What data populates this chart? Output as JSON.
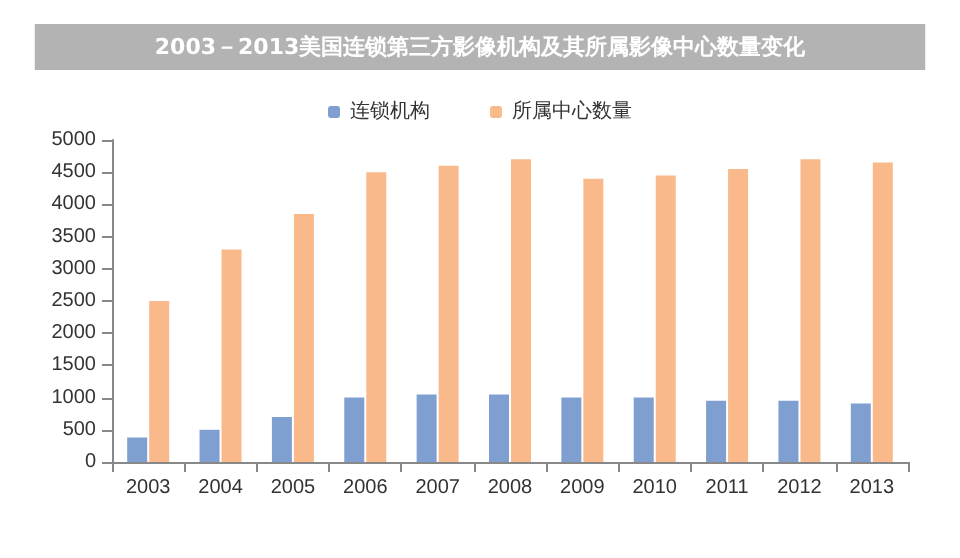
{
  "chart_data": {
    "type": "bar",
    "title": "2003－2013美国连锁第三方影像机构及其所属影像中心数量变化",
    "categories": [
      "2003",
      "2004",
      "2005",
      "2006",
      "2007",
      "2008",
      "2009",
      "2010",
      "2011",
      "2012",
      "2013"
    ],
    "series": [
      {
        "name": "连锁机构",
        "color": "#7f9fd0",
        "values": [
          380,
          500,
          700,
          1000,
          1050,
          1050,
          1000,
          1000,
          950,
          950,
          910
        ]
      },
      {
        "name": "所属中心数量",
        "color": "#f9b98a",
        "values": [
          2500,
          3300,
          3850,
          4500,
          4600,
          4700,
          4400,
          4450,
          4550,
          4700,
          4650
        ]
      }
    ],
    "ylim": [
      0,
      5000
    ],
    "yticks": [
      0,
      500,
      1000,
      1500,
      2000,
      2500,
      3000,
      3500,
      4000,
      4500,
      5000
    ],
    "grid": false,
    "legend": "top"
  }
}
